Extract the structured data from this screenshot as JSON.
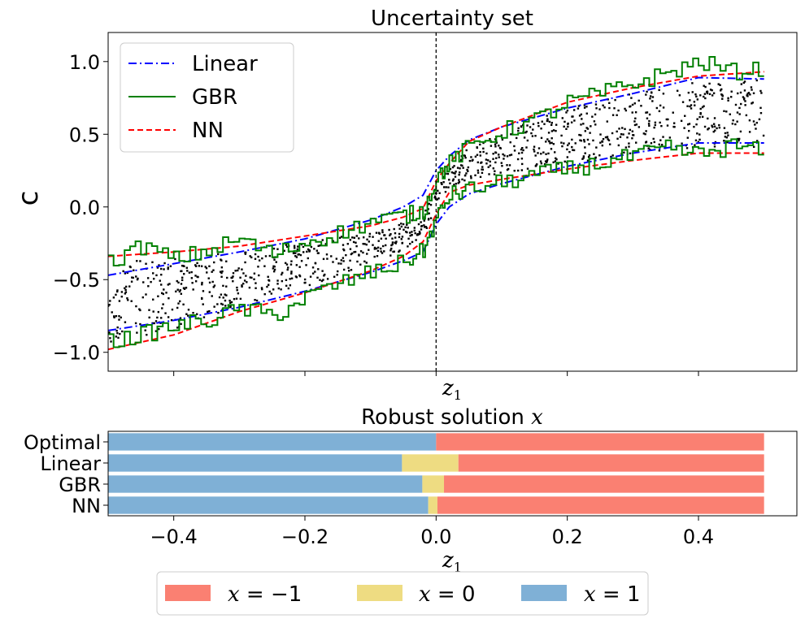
{
  "chart_data": [
    {
      "type": "line",
      "title": "Uncertainty set",
      "ylabel": "c",
      "xlabel": "z",
      "xlabel_sub": "1",
      "xlim": [
        -0.5,
        0.55
      ],
      "ylim": [
        -1.13,
        1.2
      ],
      "yticks": [
        1.0,
        0.5,
        0.0,
        -0.5,
        -1.0
      ],
      "yticklabels": [
        "1.0",
        "0.5",
        "0.0",
        "−0.5",
        "−1.0"
      ],
      "xticks": [
        -0.4,
        -0.2,
        0.0,
        0.2,
        0.4
      ],
      "vline_x": 0.0,
      "legend": {
        "position": "top-left",
        "entries": [
          {
            "label": "Linear",
            "color": "#0000ff",
            "style": "dashdot"
          },
          {
            "label": "GBR",
            "color": "#008000",
            "style": "solid"
          },
          {
            "label": "NN",
            "color": "#ff0000",
            "style": "dashed"
          }
        ]
      },
      "series": [
        {
          "name": "Linear",
          "color": "#0000ff",
          "style": "dashdot",
          "bound": "upper",
          "x": [
            -0.5,
            -0.4,
            -0.3,
            -0.2,
            -0.1,
            -0.05,
            -0.02,
            0.0,
            0.02,
            0.05,
            0.1,
            0.2,
            0.3,
            0.4,
            0.5
          ],
          "y": [
            -0.47,
            -0.39,
            -0.31,
            -0.22,
            -0.09,
            0.0,
            0.08,
            0.25,
            0.35,
            0.46,
            0.55,
            0.68,
            0.78,
            0.89,
            0.88
          ]
        },
        {
          "name": "Linear",
          "color": "#0000ff",
          "style": "dashdot",
          "bound": "lower",
          "x": [
            -0.5,
            -0.4,
            -0.3,
            -0.2,
            -0.1,
            -0.05,
            -0.02,
            0.0,
            0.02,
            0.05,
            0.1,
            0.2,
            0.3,
            0.4,
            0.5
          ],
          "y": [
            -0.85,
            -0.78,
            -0.69,
            -0.58,
            -0.45,
            -0.37,
            -0.31,
            -0.12,
            0.0,
            0.09,
            0.16,
            0.28,
            0.37,
            0.44,
            0.44
          ]
        },
        {
          "name": "NN",
          "color": "#ff0000",
          "style": "dashed",
          "bound": "upper",
          "x": [
            -0.5,
            -0.4,
            -0.3,
            -0.2,
            -0.1,
            -0.05,
            -0.02,
            0.0,
            0.02,
            0.05,
            0.1,
            0.2,
            0.3,
            0.4,
            0.5
          ],
          "y": [
            -0.34,
            -0.31,
            -0.27,
            -0.2,
            -0.13,
            -0.07,
            -0.01,
            0.18,
            0.3,
            0.45,
            0.55,
            0.72,
            0.82,
            0.9,
            0.93
          ]
        },
        {
          "name": "NN",
          "color": "#ff0000",
          "style": "dashed",
          "bound": "lower",
          "x": [
            -0.5,
            -0.4,
            -0.3,
            -0.2,
            -0.1,
            -0.05,
            -0.02,
            0.0,
            0.02,
            0.05,
            0.1,
            0.2,
            0.3,
            0.4,
            0.5
          ],
          "y": [
            -0.98,
            -0.88,
            -0.72,
            -0.59,
            -0.44,
            -0.34,
            -0.24,
            -0.05,
            0.1,
            0.15,
            0.19,
            0.26,
            0.32,
            0.37,
            0.37
          ]
        },
        {
          "name": "GBR",
          "color": "#008000",
          "style": "solid",
          "bound": "upper",
          "x": [
            -0.5,
            -0.45,
            -0.4,
            -0.35,
            -0.3,
            -0.25,
            -0.2,
            -0.15,
            -0.1,
            -0.05,
            -0.02,
            0.0,
            0.02,
            0.05,
            0.1,
            0.15,
            0.2,
            0.25,
            0.3,
            0.35,
            0.4,
            0.45,
            0.5
          ],
          "y": [
            -0.38,
            -0.27,
            -0.36,
            -0.3,
            -0.22,
            -0.33,
            -0.24,
            -0.18,
            -0.1,
            -0.06,
            -0.03,
            0.2,
            0.3,
            0.42,
            0.52,
            0.6,
            0.72,
            0.78,
            0.85,
            0.92,
            1.0,
            0.93,
            0.96
          ]
        },
        {
          "name": "GBR",
          "color": "#008000",
          "style": "solid",
          "bound": "lower",
          "x": [
            -0.5,
            -0.45,
            -0.4,
            -0.35,
            -0.3,
            -0.25,
            -0.2,
            -0.15,
            -0.1,
            -0.05,
            -0.02,
            0.0,
            0.02,
            0.05,
            0.1,
            0.15,
            0.2,
            0.25,
            0.3,
            0.35,
            0.4,
            0.45,
            0.5
          ],
          "y": [
            -0.93,
            -0.88,
            -0.82,
            -0.78,
            -0.7,
            -0.75,
            -0.62,
            -0.53,
            -0.45,
            -0.38,
            -0.3,
            -0.08,
            0.08,
            0.12,
            0.17,
            0.22,
            0.26,
            0.3,
            0.35,
            0.4,
            0.36,
            0.42,
            0.38
          ]
        }
      ],
      "scatter_note": "black points between the bounds"
    },
    {
      "type": "bar",
      "orientation": "horizontal-stacked",
      "title": "Robust solution",
      "title_var": "x",
      "xlabel": "z",
      "xlabel_sub": "1",
      "xlim": [
        -0.5,
        0.55
      ],
      "xticks": [
        -0.4,
        -0.2,
        0.0,
        0.2,
        0.4
      ],
      "xticklabels": [
        "−0.4",
        "−0.2",
        "0.0",
        "0.2",
        "0.4"
      ],
      "categories": [
        "Optimal",
        "Linear",
        "GBR",
        "NN"
      ],
      "colors": {
        "x=-1": "#fa8072",
        "x=0": "#eedc82",
        "x=1": "#7fb0d6"
      },
      "segments": [
        {
          "category": "Optimal",
          "x1_end": 0.0,
          "x0_end": 0.0
        },
        {
          "category": "Linear",
          "x1_end": -0.052,
          "x0_end": 0.034
        },
        {
          "category": "GBR",
          "x1_end": -0.021,
          "x0_end": 0.012
        },
        {
          "category": "NN",
          "x1_end": -0.012,
          "x0_end": 0.002
        }
      ],
      "xmax": 0.5,
      "legend": {
        "position": "bottom",
        "entries": [
          {
            "lhs": "x",
            "rhs": "−1",
            "color": "#fa8072"
          },
          {
            "lhs": "x",
            "rhs": "0",
            "color": "#eedc82"
          },
          {
            "lhs": "x",
            "rhs": "1",
            "color": "#7fb0d6"
          }
        ]
      }
    }
  ]
}
